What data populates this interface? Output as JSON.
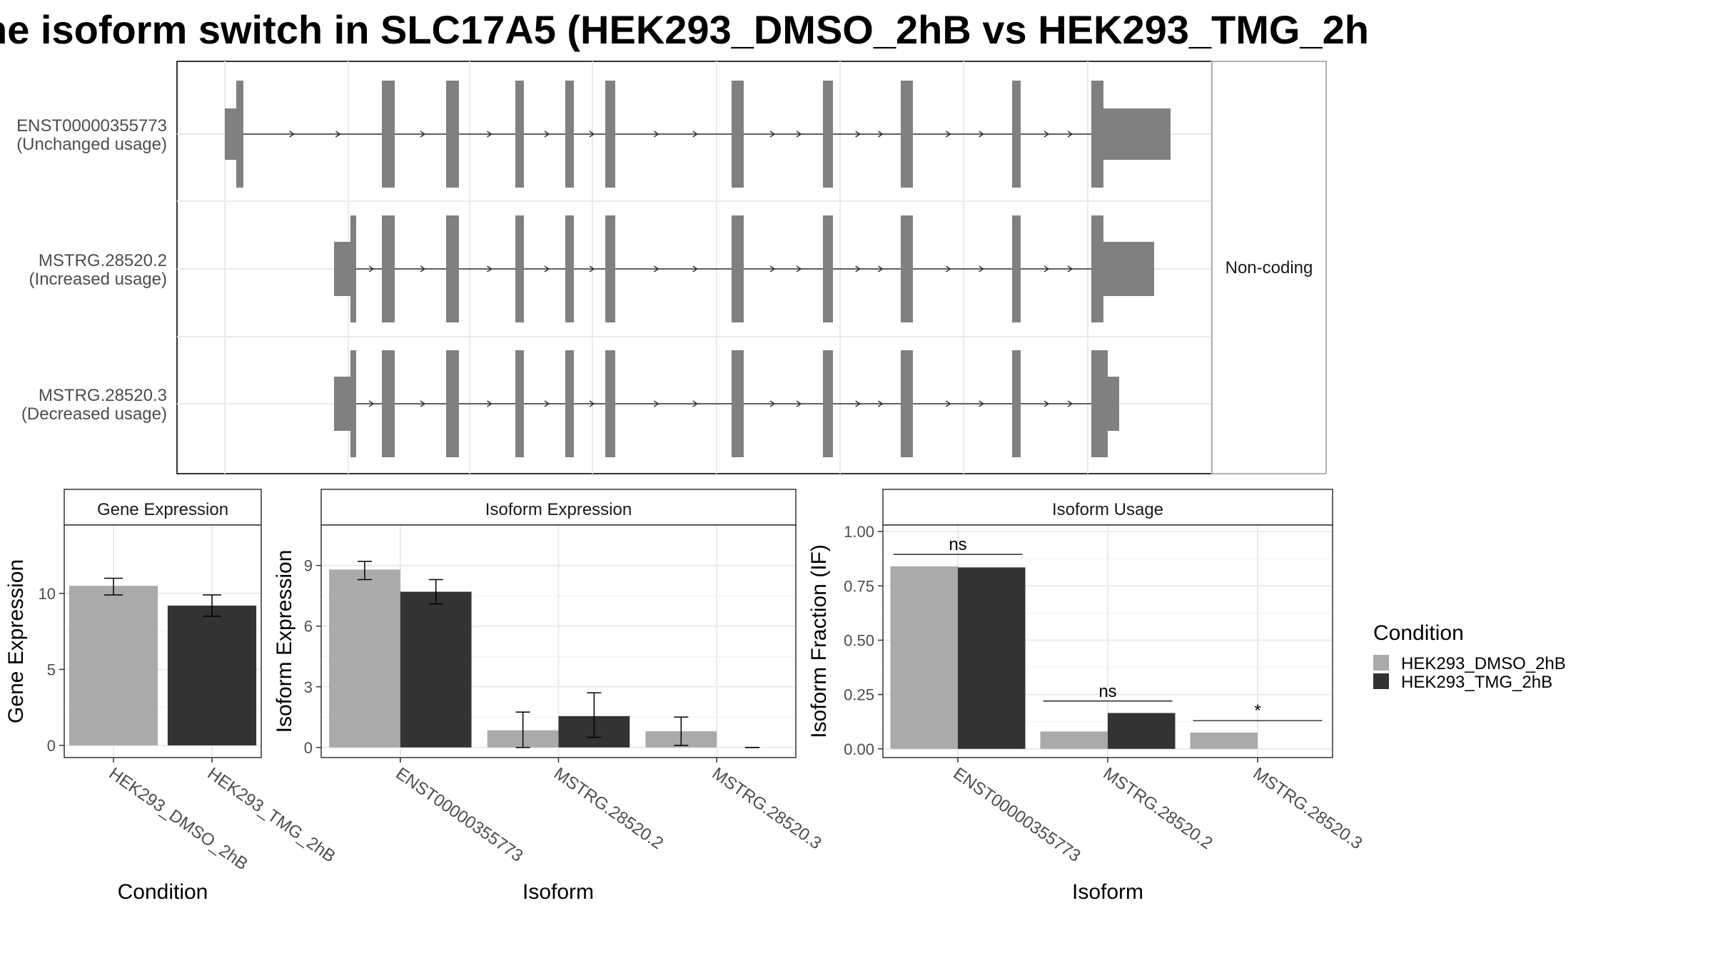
{
  "title": "ne isoform switch in SLC17A5 (HEK293_DMSO_2hB vs HEK293_TMG_2h",
  "colors": {
    "exon": "#808080",
    "dmso": "#aaaaaa",
    "tmg": "#333333",
    "grid": "#ebebeb",
    "strip": "#ffffff"
  },
  "transcript_panel": {
    "strip_label": "Non-coding",
    "transcripts": [
      {
        "name": "ENST00000355773",
        "usage": "(Unchanged usage)"
      },
      {
        "name": "MSTRG.28520.2",
        "usage": "(Increased usage)"
      },
      {
        "name": "MSTRG.28520.3",
        "usage": "(Decreased usage)"
      }
    ]
  },
  "legend": {
    "title": "Condition",
    "items": [
      {
        "label": "HEK293_DMSO_2hB",
        "color": "#aaaaaa"
      },
      {
        "label": "HEK293_TMG_2hB",
        "color": "#333333"
      }
    ]
  },
  "chart_data": [
    {
      "type": "bar",
      "title": "Gene Expression",
      "xlabel": "Condition",
      "ylabel": "Gene Expression",
      "ylim": [
        -0.8,
        14.5
      ],
      "yticks": [
        0,
        5,
        10
      ],
      "categories": [
        "HEK293_DMSO_2hB",
        "HEK293_TMG_2hB"
      ],
      "values": [
        10.5,
        9.2
      ],
      "errors": [
        [
          9.9,
          11.0
        ],
        [
          8.5,
          9.9
        ]
      ],
      "colors": [
        "#aaaaaa",
        "#333333"
      ]
    },
    {
      "type": "bar",
      "title": "Isoform Expression",
      "xlabel": "Isoform",
      "ylabel": "Isoform Expression",
      "ylim": [
        -0.5,
        11.0
      ],
      "yticks": [
        0,
        3,
        6,
        9
      ],
      "categories": [
        "ENST00000355773",
        "MSTRG.28520.2",
        "MSTRG.28520.3"
      ],
      "series": [
        {
          "name": "HEK293_DMSO_2hB",
          "values": [
            8.8,
            0.85,
            0.8
          ],
          "errors": [
            [
              8.3,
              9.2
            ],
            [
              0.0,
              1.75
            ],
            [
              0.1,
              1.5
            ]
          ]
        },
        {
          "name": "HEK293_TMG_2hB",
          "values": [
            7.7,
            1.55,
            0.0
          ],
          "errors": [
            [
              7.1,
              8.3
            ],
            [
              0.5,
              2.7
            ],
            [
              0.0,
              0.0
            ]
          ]
        }
      ]
    },
    {
      "type": "bar",
      "title": "Isoform Usage",
      "xlabel": "Isoform",
      "ylabel": "Isoform Fraction (IF)",
      "ylim": [
        -0.04,
        1.03
      ],
      "yticks": [
        0,
        0.25,
        0.5,
        0.75,
        1.0
      ],
      "ytick_labels": [
        "0.00",
        "0.25",
        "0.50",
        "0.75",
        "1.00"
      ],
      "categories": [
        "ENST00000355773",
        "MSTRG.28520.2",
        "MSTRG.28520.3"
      ],
      "series": [
        {
          "name": "HEK293_DMSO_2hB",
          "values": [
            0.84,
            0.08,
            0.075
          ]
        },
        {
          "name": "HEK293_TMG_2hB",
          "values": [
            0.835,
            0.165,
            0.0
          ]
        }
      ],
      "significance": [
        "ns",
        "ns",
        "*"
      ]
    }
  ]
}
